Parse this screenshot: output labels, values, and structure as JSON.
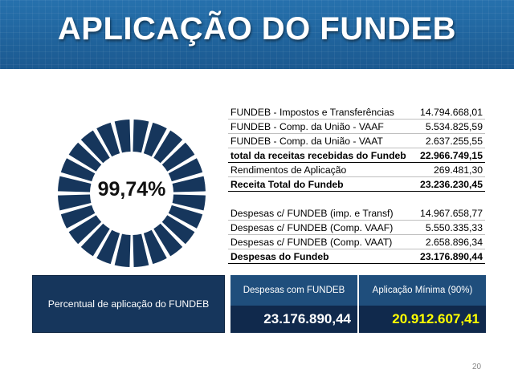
{
  "title": "APLICAÇÃO DO FUNDEB",
  "donut": {
    "percent_label": "99,74%",
    "fill_fraction": 0.9974,
    "segments": 24,
    "color": "#16365c"
  },
  "revenue_table": [
    {
      "label": "FUNDEB - Impostos e Transferências",
      "value": "14.794.668,01",
      "bold": false
    },
    {
      "label": "FUNDEB - Comp. da União - VAAF",
      "value": "5.534.825,59",
      "bold": false
    },
    {
      "label": "FUNDEB - Comp. da União - VAAT",
      "value": "2.637.255,55",
      "bold": false
    },
    {
      "label": "total da receitas recebidas do Fundeb",
      "value": "22.966.749,15",
      "bold": true
    },
    {
      "label": "Rendimentos de Aplicação",
      "value": "269.481,30",
      "bold": false
    },
    {
      "label": "Receita Total do Fundeb",
      "value": "23.236.230,45",
      "bold": true
    }
  ],
  "expense_table": [
    {
      "label": "Despesas c/ FUNDEB (imp. e Transf)",
      "value": "14.967.658,77",
      "bold": false
    },
    {
      "label": "Despesas c/ FUNDEB (Comp. VAAF)",
      "value": "5.550.335,33",
      "bold": false
    },
    {
      "label": "Despesas c/ FUNDEB (Comp. VAAT)",
      "value": "2.658.896,34",
      "bold": false
    },
    {
      "label": "Despesas do Fundeb",
      "value": "23.176.890,44",
      "bold": true
    }
  ],
  "summary": {
    "label": "Percentual de aplicação do FUNDEB",
    "expenses_header": "Despesas com FUNDEB",
    "expenses_value": "23.176.890,44",
    "minimum_header": "Aplicação Mínima (90%)",
    "minimum_value": "20.912.607,41",
    "expenses_color": "#ffffff",
    "minimum_color": "#ffff00"
  },
  "page_number": "20"
}
